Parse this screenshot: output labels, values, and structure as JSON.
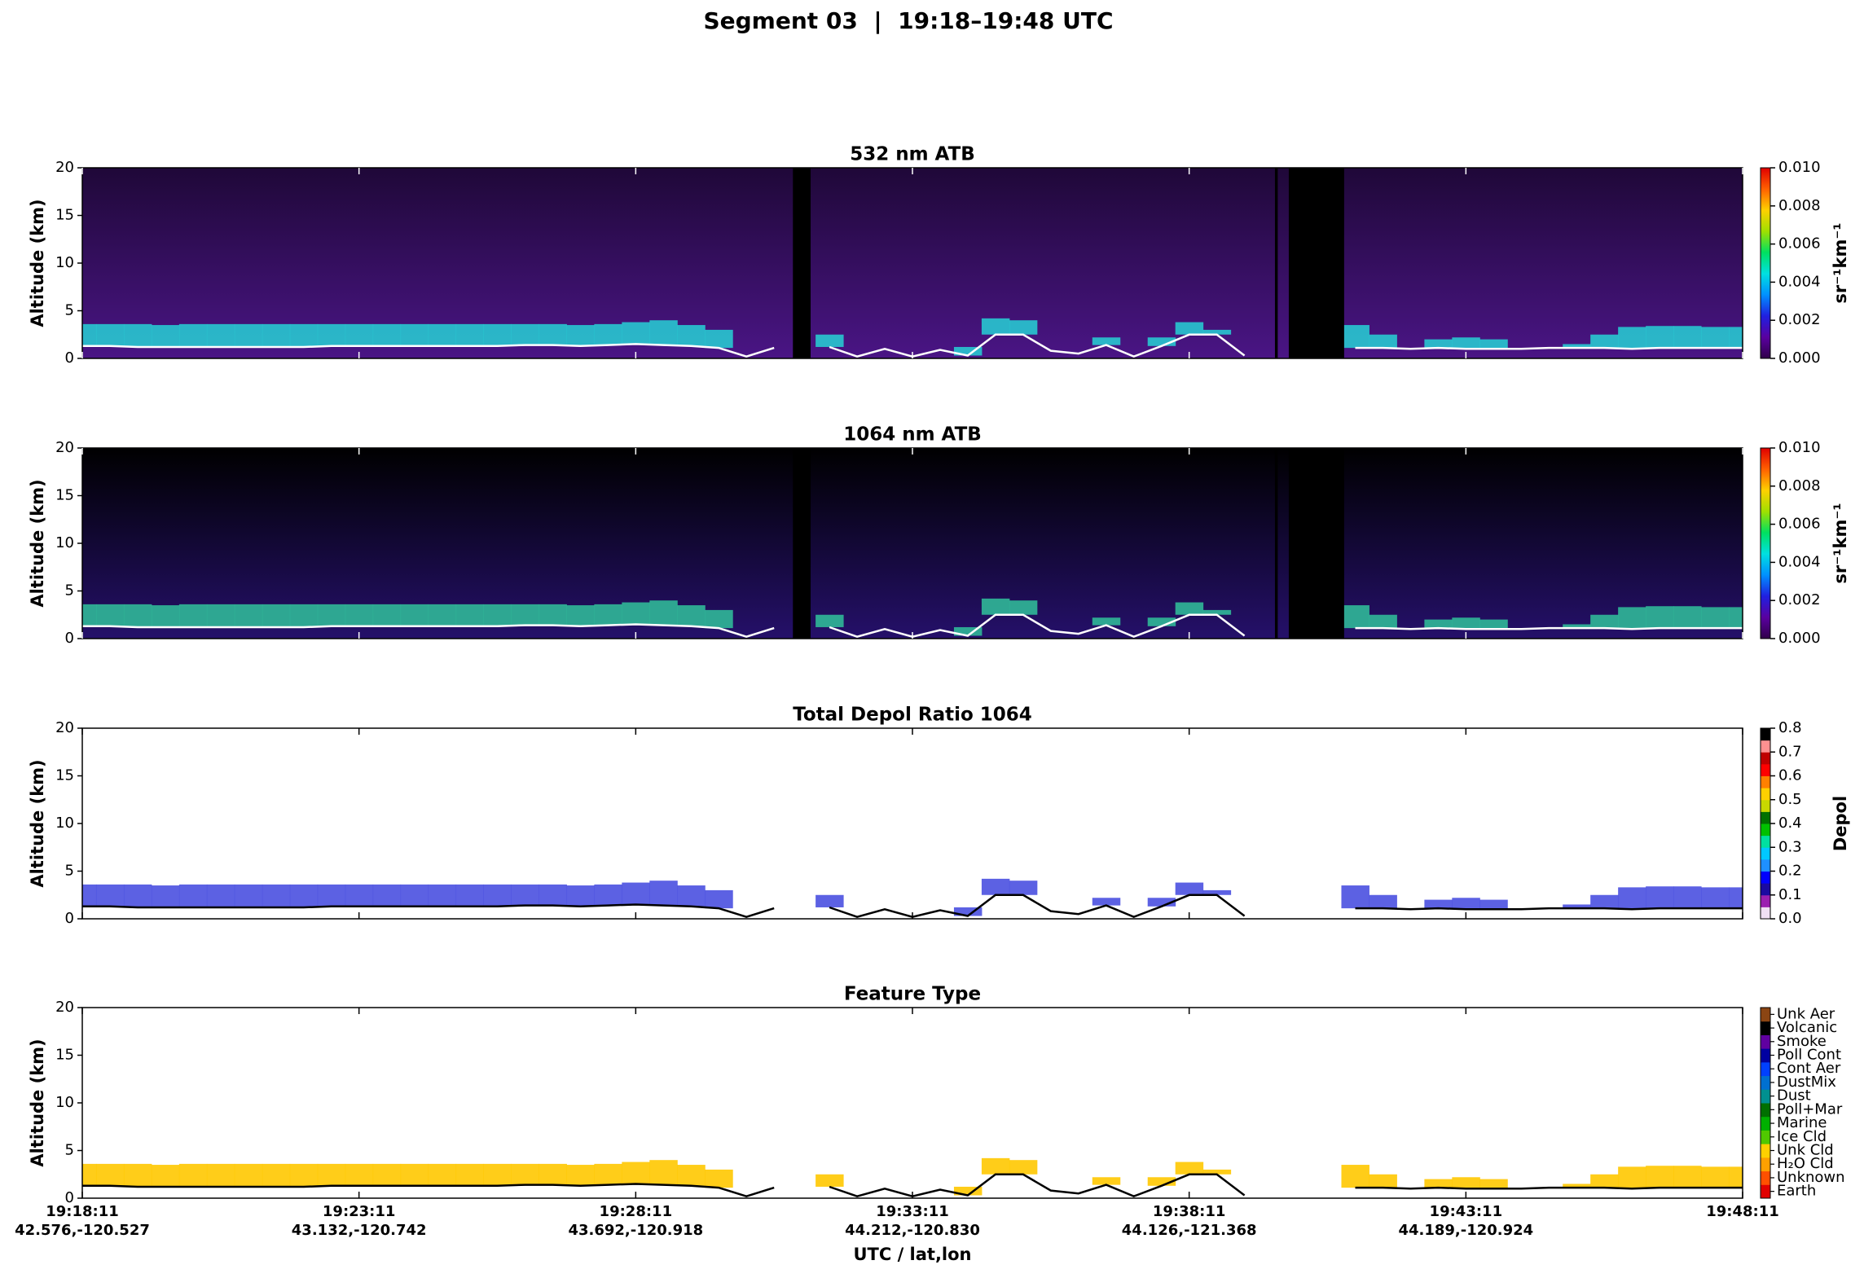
{
  "title": "Segment 03  |  19:18–19:48 UTC",
  "track": {
    "x": [
      0,
      0.5,
      1,
      1.5,
      2,
      2.5,
      3,
      3.5,
      4,
      4.5,
      5,
      5.5,
      6,
      6.5,
      7,
      7.5,
      8,
      8.5,
      9,
      9.5,
      10,
      10.5,
      11,
      11.5,
      12,
      12.5,
      13,
      13.5,
      14,
      14.5,
      15,
      15.5,
      16,
      16.5,
      17,
      17.5,
      18,
      18.5,
      19,
      19.5,
      20,
      20.5,
      21,
      21.5,
      22,
      22.5,
      23,
      23.5,
      24,
      24.5,
      25,
      25.5,
      26,
      26.5,
      27,
      27.5,
      28,
      28.5,
      29,
      29.5,
      30
    ],
    "surface": [
      1.3,
      1.3,
      1.2,
      1.2,
      1.2,
      1.2,
      1.2,
      1.2,
      1.2,
      1.3,
      1.3,
      1.3,
      1.3,
      1.3,
      1.3,
      1.3,
      1.4,
      1.4,
      1.3,
      1.4,
      1.5,
      1.4,
      1.3,
      1.1,
      0.2,
      1.1,
      null,
      1.2,
      0.2,
      1.0,
      0.2,
      0.9,
      0.3,
      2.5,
      2.5,
      0.8,
      0.5,
      1.4,
      0.2,
      1.3,
      2.5,
      2.5,
      0.3,
      null,
      null,
      null,
      1.1,
      1.1,
      1.0,
      1.1,
      1.0,
      1.0,
      1.0,
      1.1,
      1.1,
      1.1,
      1.0,
      1.1,
      1.1,
      1.1,
      1.1
    ],
    "layer_top": [
      3.6,
      3.6,
      3.6,
      3.5,
      3.6,
      3.6,
      3.6,
      3.6,
      3.6,
      3.6,
      3.6,
      3.6,
      3.6,
      3.6,
      3.6,
      3.6,
      3.6,
      3.6,
      3.5,
      3.6,
      3.8,
      4.0,
      3.5,
      3.0,
      null,
      null,
      null,
      2.5,
      null,
      null,
      null,
      null,
      1.2,
      4.2,
      4.0,
      null,
      null,
      2.2,
      null,
      2.2,
      3.8,
      3.0,
      null,
      null,
      null,
      null,
      3.5,
      2.5,
      null,
      2.0,
      2.2,
      2.0,
      null,
      null,
      1.5,
      2.5,
      3.3,
      3.4,
      3.4,
      3.3,
      3.3
    ],
    "gaps": [
      [
        12.84,
        13.16
      ],
      [
        21.55,
        21.6
      ],
      [
        21.8,
        22.8
      ]
    ]
  },
  "chart_data": [
    {
      "type": "curtain",
      "title": "532 nm ATB",
      "ylabel": "Altitude (km)",
      "xlim": [
        0,
        30
      ],
      "xticks": [
        0,
        5,
        10,
        15,
        20,
        25,
        30
      ],
      "ylim": [
        0,
        20
      ],
      "yticks": [
        0,
        5,
        10,
        15,
        20
      ],
      "background": [
        "#4a1585",
        "#1f0838"
      ],
      "layer_color": "#28c8d0",
      "line_color": "#ffffff",
      "show_gaps": true,
      "colorbar": {
        "kind": "gradient",
        "label": "sr⁻¹km⁻¹",
        "lim": [
          0,
          0.01
        ],
        "colors": [
          "#30004a",
          "#5a00a0",
          "#2020e0",
          "#0090ff",
          "#00e0e0",
          "#00e060",
          "#a0e000",
          "#ffd000",
          "#ff6000",
          "#e00000"
        ],
        "ticks": [
          {
            "value": 0,
            "label": "0.000"
          },
          {
            "value": 0.002,
            "label": "0.002"
          },
          {
            "value": 0.004,
            "label": "0.004"
          },
          {
            "value": 0.006,
            "label": "0.006"
          },
          {
            "value": 0.008,
            "label": "0.008"
          },
          {
            "value": 0.01,
            "label": "0.010"
          }
        ]
      }
    },
    {
      "type": "curtain",
      "title": "1064 nm ATB",
      "ylabel": "Altitude (km)",
      "xlim": [
        0,
        30
      ],
      "xticks": [
        0,
        5,
        10,
        15,
        20,
        25,
        30
      ],
      "ylim": [
        0,
        20
      ],
      "yticks": [
        0,
        5,
        10,
        15,
        20
      ],
      "background": [
        "#25106a",
        "#000000"
      ],
      "layer_color": "#30b898",
      "line_color": "#ffffff",
      "show_gaps": true,
      "colorbar": {
        "kind": "gradient",
        "label": "sr⁻¹km⁻¹",
        "lim": [
          0,
          0.01
        ],
        "colors": [
          "#30004a",
          "#5a00a0",
          "#2020e0",
          "#0090ff",
          "#00e0e0",
          "#00e060",
          "#a0e000",
          "#ffd000",
          "#ff6000",
          "#e00000"
        ],
        "ticks": [
          {
            "value": 0,
            "label": "0.000"
          },
          {
            "value": 0.002,
            "label": "0.002"
          },
          {
            "value": 0.004,
            "label": "0.004"
          },
          {
            "value": 0.006,
            "label": "0.006"
          },
          {
            "value": 0.008,
            "label": "0.008"
          },
          {
            "value": 0.01,
            "label": "0.010"
          }
        ]
      }
    },
    {
      "type": "curtain",
      "title": "Total Depol Ratio 1064",
      "ylabel": "Altitude (km)",
      "xlim": [
        0,
        30
      ],
      "xticks": [
        0,
        5,
        10,
        15,
        20,
        25,
        30
      ],
      "ylim": [
        0,
        20
      ],
      "yticks": [
        0,
        5,
        10,
        15,
        20
      ],
      "background": [
        "#ffffff",
        "#ffffff"
      ],
      "layer_color": "#4a50e0",
      "line_color": "#000000",
      "show_gaps": false,
      "colorbar": {
        "kind": "steps",
        "label": "Depol",
        "lim": [
          0,
          0.8
        ],
        "colors": [
          "#f0e0f4",
          "#9b1fb0",
          "#1a0aa0",
          "#0000ff",
          "#1e90ff",
          "#00c8ff",
          "#00e0a0",
          "#00c000",
          "#007000",
          "#c8d800",
          "#ffd000",
          "#ff8000",
          "#ff0000",
          "#c00000",
          "#ff9090",
          "#000000"
        ],
        "ticks": [
          {
            "value": 0,
            "label": "0.0"
          },
          {
            "value": 0.1,
            "label": "0.1"
          },
          {
            "value": 0.2,
            "label": "0.2"
          },
          {
            "value": 0.3,
            "label": "0.3"
          },
          {
            "value": 0.4,
            "label": "0.4"
          },
          {
            "value": 0.5,
            "label": "0.5"
          },
          {
            "value": 0.6,
            "label": "0.6"
          },
          {
            "value": 0.7,
            "label": "0.7"
          },
          {
            "value": 0.8,
            "label": "0.8"
          }
        ]
      }
    },
    {
      "type": "curtain",
      "title": "Feature Type",
      "ylabel": "Altitude (km)",
      "xlabel": "UTC / lat,lon",
      "xlim": [
        0,
        30
      ],
      "xticks": [
        {
          "value": 0,
          "label": "19:18:11",
          "location": "42.576,-120.527"
        },
        {
          "value": 5,
          "label": "19:23:11",
          "location": "43.132,-120.742"
        },
        {
          "value": 10,
          "label": "19:28:11",
          "location": "43.692,-120.918"
        },
        {
          "value": 15,
          "label": "19:33:11",
          "location": "44.212,-120.830"
        },
        {
          "value": 20,
          "label": "19:38:11",
          "location": "44.126,-121.368"
        },
        {
          "value": 25,
          "label": "19:43:11",
          "location": "44.189,-120.924"
        },
        {
          "value": 30,
          "label": "19:48:11"
        }
      ],
      "ylim": [
        0,
        20
      ],
      "yticks": [
        0,
        5,
        10,
        15,
        20
      ],
      "background": [
        "#ffffff",
        "#ffffff"
      ],
      "layer_color": "#ffc800",
      "line_color": "#000000",
      "show_gaps": false,
      "colorbar": {
        "kind": "categories",
        "categories": [
          "Unk Aer",
          "Volcanic",
          "Smoke",
          "Poll Cont",
          "Cont Aer",
          "DustMix",
          "Dust",
          "Poll+Mar",
          "Marine",
          "Ice Cld",
          "Unk Cld",
          "H₂O Cld",
          "Unknown",
          "Earth"
        ],
        "colors": [
          "#e00000",
          "#ff5000",
          "#ffa000",
          "#ffd000",
          "#50c800",
          "#00b000",
          "#007000",
          "#009090",
          "#0070d0",
          "#0040ff",
          "#0000a0",
          "#6000a0",
          "#000000",
          "#8b4513"
        ]
      }
    }
  ]
}
